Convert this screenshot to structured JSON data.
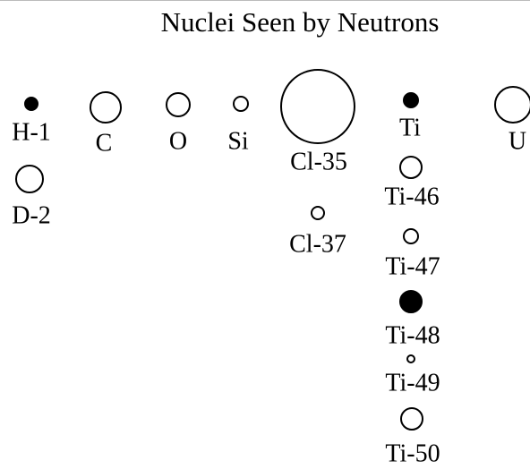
{
  "title": "Nuclei Seen by Neutrons",
  "nodes": [
    {
      "label": "H-1"
    },
    {
      "label": "D-2"
    },
    {
      "label": "C"
    },
    {
      "label": "O"
    },
    {
      "label": "Si"
    },
    {
      "label": "Cl-35"
    },
    {
      "label": "Cl-37"
    },
    {
      "label": "Ti"
    },
    {
      "label": "Ti-46"
    },
    {
      "label": "Ti-47"
    },
    {
      "label": "Ti-48"
    },
    {
      "label": "Ti-49"
    },
    {
      "label": "Ti-50"
    },
    {
      "label": "U"
    }
  ]
}
